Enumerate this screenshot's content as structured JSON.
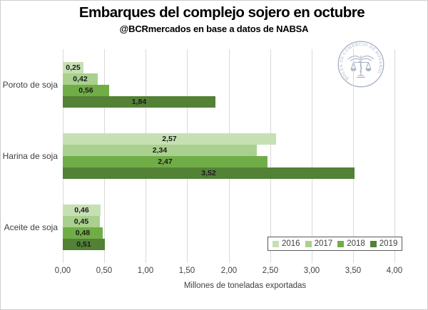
{
  "chart_data": {
    "type": "bar",
    "orientation": "horizontal",
    "title": "Embarques del complejo sojero en octubre",
    "subtitle": "@BCRmercados en base a datos de NABSA",
    "categories": [
      "Poroto de soja",
      "Harina de soja",
      "Aceite de soja"
    ],
    "series": [
      {
        "name": "2016",
        "color": "#c6e0b4",
        "values": [
          0.25,
          2.57,
          0.46
        ],
        "labels": [
          "0,25",
          "2,57",
          "0,46"
        ]
      },
      {
        "name": "2017",
        "color": "#a9d08e",
        "values": [
          0.42,
          2.34,
          0.45
        ],
        "labels": [
          "0,42",
          "2,34",
          "0,45"
        ]
      },
      {
        "name": "2018",
        "color": "#71ad47",
        "values": [
          0.56,
          2.47,
          0.48
        ],
        "labels": [
          "0,56",
          "2,47",
          "0,48"
        ]
      },
      {
        "name": "2019",
        "color": "#538136",
        "values": [
          1.84,
          3.52,
          0.51
        ],
        "labels": [
          "1,84",
          "3,52",
          "0,51"
        ]
      }
    ],
    "xlabel": "Millones de toneladas exportadas",
    "xlim": [
      0,
      4
    ],
    "xticks": [
      {
        "value": 0,
        "label": "0,00"
      },
      {
        "value": 0.5,
        "label": "0,50"
      },
      {
        "value": 1,
        "label": "1,00"
      },
      {
        "value": 1.5,
        "label": "1,50"
      },
      {
        "value": 2,
        "label": "2,00"
      },
      {
        "value": 2.5,
        "label": "2,50"
      },
      {
        "value": 3,
        "label": "3,00"
      },
      {
        "value": 3.5,
        "label": "3,50"
      },
      {
        "value": 4,
        "label": "4,00"
      }
    ],
    "grid": true,
    "legend_position": "bottom-right"
  },
  "watermark": {
    "ring_text": "BOLSA DE COMERCIO DE ROSARIO",
    "color": "#a7b1c4"
  },
  "colors": {
    "gridline": "#d9d9d9",
    "axis_text": "#404040",
    "value_label": "#1a1a1a",
    "legend_border": "#595959",
    "frame_border": "#cdcdcd"
  }
}
